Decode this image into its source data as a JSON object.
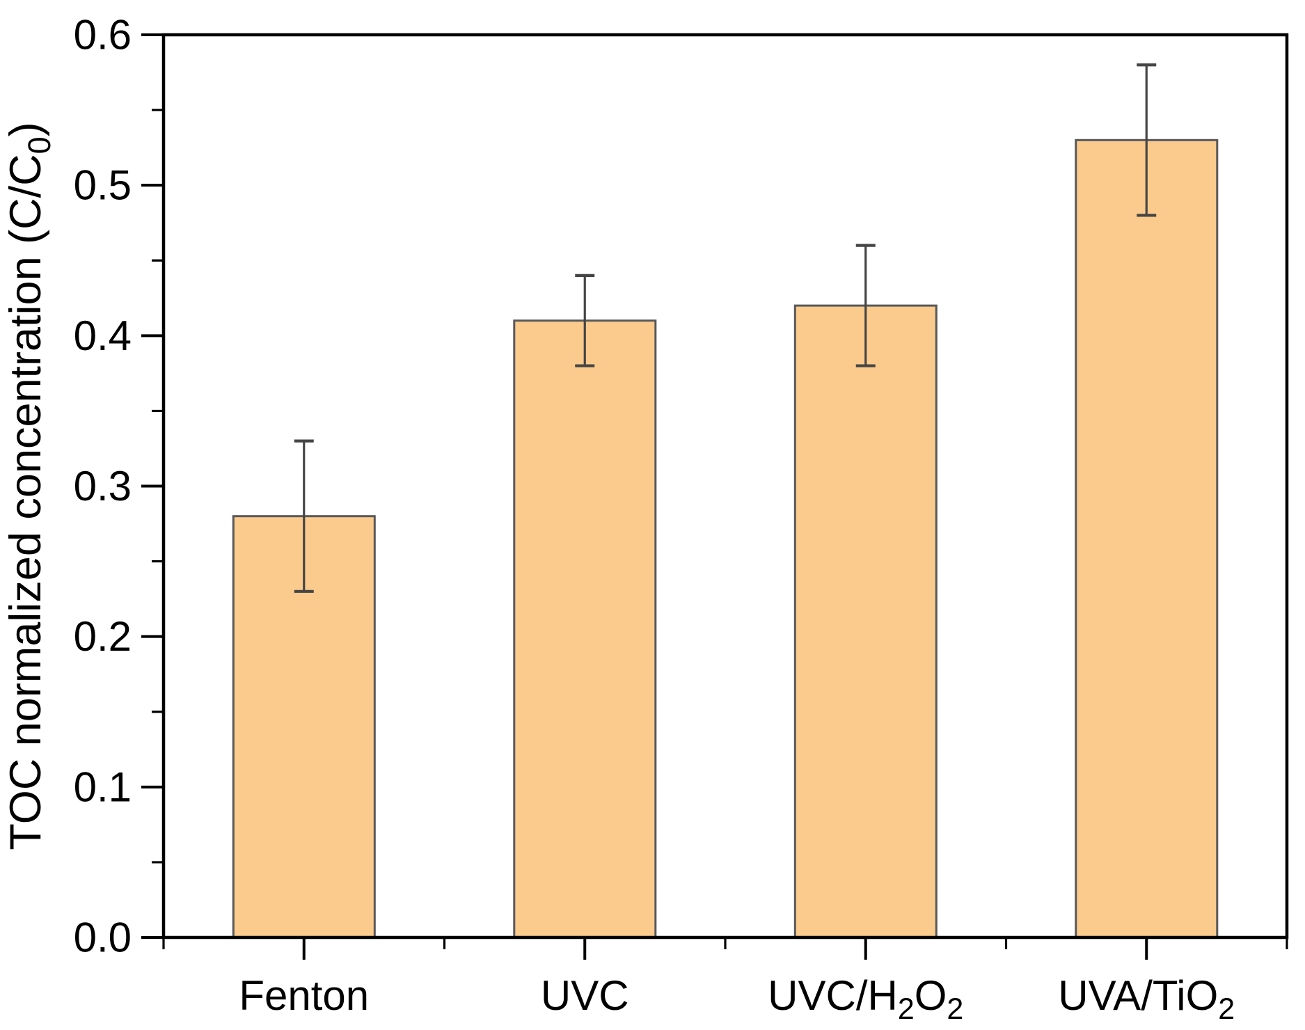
{
  "chart_data": {
    "type": "bar",
    "title": "",
    "categories": [
      "Fenton",
      "UVC",
      "UVC/H2O2",
      "UVA/TiO2"
    ],
    "categories_rich": [
      [
        {
          "t": "Fenton"
        }
      ],
      [
        {
          "t": "UVC"
        }
      ],
      [
        {
          "t": "UVC/H"
        },
        {
          "t": "2",
          "sub": true
        },
        {
          "t": "O"
        },
        {
          "t": "2",
          "sub": true
        }
      ],
      [
        {
          "t": "UVA/TiO"
        },
        {
          "t": "2",
          "sub": true
        }
      ]
    ],
    "values": [
      0.28,
      0.41,
      0.42,
      0.53
    ],
    "errors": [
      0.05,
      0.03,
      0.04,
      0.05
    ],
    "xlabel": "",
    "ylabel": "TOC normalized concentration (C/C0)",
    "ylabel_rich": [
      {
        "t": "TOC normalized concentration (C/C"
      },
      {
        "t": "0",
        "sub": true
      },
      {
        "t": ")"
      }
    ],
    "ylim": [
      0.0,
      0.6
    ],
    "ytick_step": 0.1,
    "yminor_step": 0.05,
    "ytick_labels": [
      "0.0",
      "0.1",
      "0.2",
      "0.3",
      "0.4",
      "0.5",
      "0.6"
    ],
    "grid": false,
    "legend": null,
    "colors": {
      "bar_fill": "#FBCB8D",
      "bar_edge": "#58585A",
      "error_bar": "#454545",
      "axis": "#000000",
      "text": "#000000",
      "background": "#FFFFFF"
    }
  }
}
